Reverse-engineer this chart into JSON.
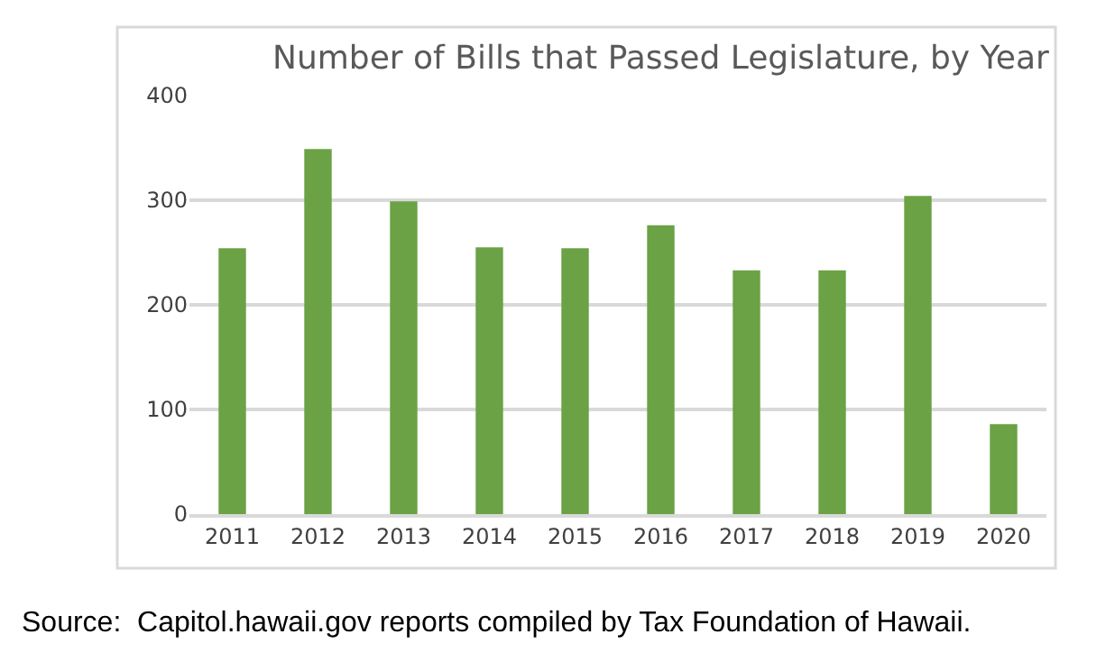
{
  "chart_data": {
    "type": "bar",
    "title": "Number of Bills that Passed Legislature, by Year",
    "categories": [
      "2011",
      "2012",
      "2013",
      "2014",
      "2015",
      "2016",
      "2017",
      "2018",
      "2019",
      "2020"
    ],
    "values": [
      254,
      349,
      299,
      255,
      254,
      276,
      233,
      233,
      304,
      86
    ],
    "color": "#6aa245",
    "ylim": [
      0,
      400
    ],
    "yticks": [
      0,
      100,
      200,
      300,
      400
    ],
    "grid": "y",
    "legend": false,
    "annotations": [
      "Source:  Capitol.hawaii.gov reports compiled by Tax Foundation of Hawaii."
    ]
  }
}
